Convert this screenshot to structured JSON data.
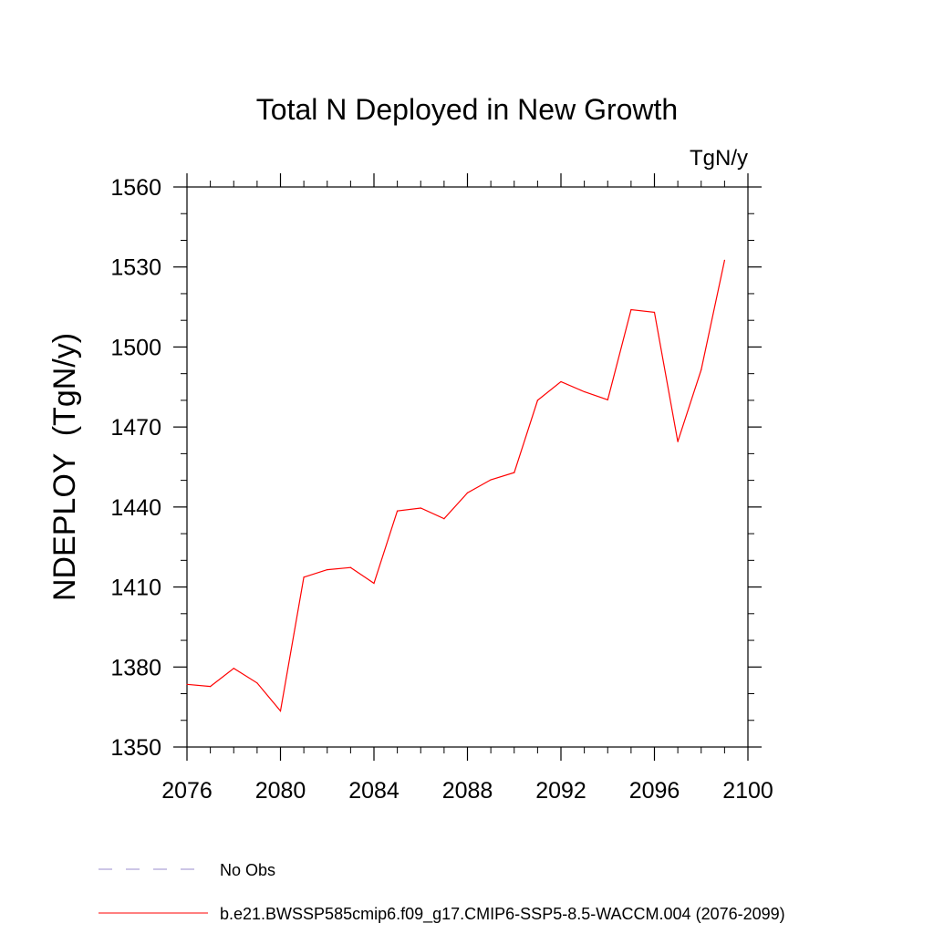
{
  "chart_data": {
    "type": "line",
    "title": "Total N Deployed in New Growth",
    "units": "TgN/y",
    "ylabel": "NDEPLOY  (TgN/y)",
    "xlabel": "",
    "xlim": [
      2076,
      2100
    ],
    "ylim": [
      1350,
      1560
    ],
    "xticks": [
      2076,
      2080,
      2084,
      2088,
      2092,
      2096,
      2100
    ],
    "yticks": [
      1350,
      1380,
      1410,
      1440,
      1470,
      1500,
      1530,
      1560
    ],
    "grid": false,
    "legend_position": "bottom-left",
    "series": [
      {
        "name": "b.e21.BWSSP585cmip6.f09_g17.CMIP6-SSP5-8.5-WACCM.004 (2076-2099)",
        "color": "#ff0000",
        "style": "solid",
        "x": [
          2076,
          2077,
          2078,
          2079,
          2080,
          2081,
          2082,
          2083,
          2084,
          2085,
          2086,
          2087,
          2088,
          2089,
          2090,
          2091,
          2092,
          2093,
          2094,
          2095,
          2096,
          2097,
          2098,
          2099
        ],
        "y": [
          1373.5,
          1372.7,
          1379.5,
          1374.0,
          1363.5,
          1413.7,
          1416.5,
          1417.3,
          1411.4,
          1438.5,
          1439.6,
          1435.6,
          1445.3,
          1450.2,
          1452.9,
          1480.0,
          1487.0,
          1483.2,
          1480.2,
          1514.0,
          1513.0,
          1464.5,
          1491.5,
          1532.5
        ]
      }
    ],
    "legend": [
      {
        "label": "No Obs",
        "color": "#9a8ccc",
        "style": "dashed"
      },
      {
        "label": "b.e21.BWSSP585cmip6.f09_g17.CMIP6-SSP5-8.5-WACCM.004 (2076-2099)",
        "color": "#ff0000",
        "style": "solid"
      }
    ]
  }
}
